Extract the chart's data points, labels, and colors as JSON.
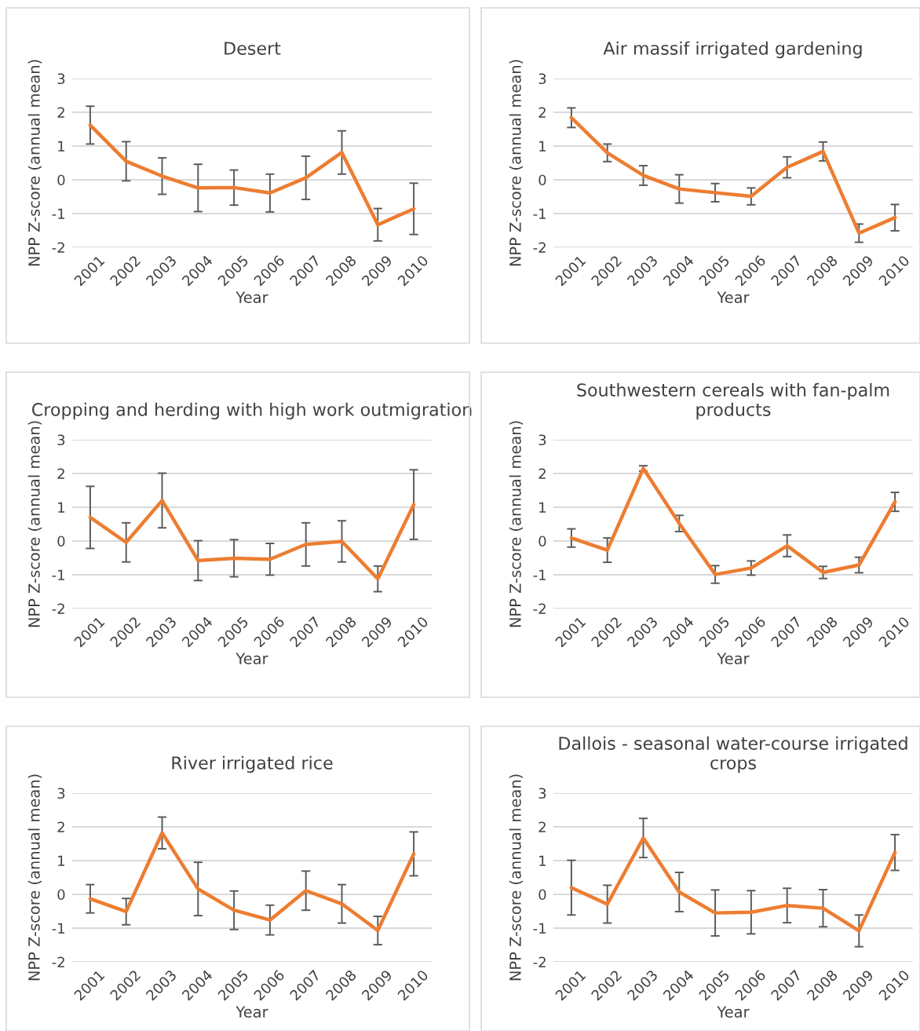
{
  "chart_data": [
    {
      "type": "line",
      "title": "Desert",
      "xlabel": "Year",
      "ylabel": "NPP Z-score (annual mean)",
      "categories": [
        "2001",
        "2002",
        "2003",
        "2004",
        "2005",
        "2006",
        "2007",
        "2008",
        "2009",
        "2010"
      ],
      "ylim": [
        -2,
        3
      ],
      "yticks": [
        -2,
        -1,
        0,
        1,
        2,
        3
      ],
      "grid": "y",
      "line_style": "solid",
      "series": [
        {
          "color": "#ed7d31",
          "values": [
            1.62,
            0.55,
            0.11,
            -0.24,
            -0.23,
            -0.39,
            0.06,
            0.81,
            -1.33,
            -0.86
          ],
          "errors": [
            0.56,
            0.58,
            0.54,
            0.7,
            0.52,
            0.56,
            0.64,
            0.64,
            0.48,
            0.76
          ]
        }
      ]
    },
    {
      "type": "line",
      "title": "Air massif irrigated gardening",
      "xlabel": "Year",
      "ylabel": "NPP Z-score (annual mean)",
      "categories": [
        "2001",
        "2002",
        "2003",
        "2004",
        "2005",
        "2006",
        "2007",
        "2008",
        "2009",
        "2010"
      ],
      "ylim": [
        -2,
        3
      ],
      "yticks": [
        -2,
        -1,
        0,
        1,
        2,
        3
      ],
      "grid": "y",
      "line_style": "solid",
      "series": [
        {
          "color": "#ed7d31",
          "values": [
            1.84,
            0.8,
            0.13,
            -0.27,
            -0.38,
            -0.49,
            0.37,
            0.84,
            -1.58,
            -1.12
          ],
          "errors": [
            0.29,
            0.26,
            0.29,
            0.42,
            0.27,
            0.25,
            0.31,
            0.28,
            0.27,
            0.39
          ]
        }
      ]
    },
    {
      "type": "line",
      "title": "Cropping and herding with high work outmigration",
      "xlabel": "Year",
      "ylabel": "NPP Z-score (annual mean)",
      "categories": [
        "2001",
        "2002",
        "2003",
        "2004",
        "2005",
        "2006",
        "2007",
        "2008",
        "2009",
        "2010"
      ],
      "ylim": [
        -2,
        3
      ],
      "yticks": [
        -2,
        -1,
        0,
        1,
        2,
        3
      ],
      "grid": "y",
      "line_style": "solid",
      "series": [
        {
          "color": "#ed7d31",
          "values": [
            0.7,
            -0.04,
            1.2,
            -0.58,
            -0.51,
            -0.54,
            -0.1,
            -0.01,
            -1.12,
            1.08
          ],
          "errors": [
            0.92,
            0.58,
            0.81,
            0.59,
            0.55,
            0.47,
            0.64,
            0.61,
            0.38,
            1.03
          ]
        }
      ]
    },
    {
      "type": "line",
      "title": "Southwestern cereals with fan-palm products",
      "xlabel": "Year",
      "ylabel": "NPP Z-score (annual mean)",
      "categories": [
        "2001",
        "2002",
        "2003",
        "2004",
        "2005",
        "2006",
        "2007",
        "2008",
        "2009",
        "2010"
      ],
      "ylim": [
        -2,
        3
      ],
      "yticks": [
        -2,
        -1,
        0,
        1,
        2,
        3
      ],
      "grid": "y",
      "line_style": "solid",
      "series": [
        {
          "color": "#ed7d31",
          "values": [
            0.09,
            -0.27,
            2.15,
            0.52,
            -0.99,
            -0.8,
            -0.14,
            -0.93,
            -0.71,
            1.16
          ],
          "errors": [
            0.27,
            0.36,
            0.08,
            0.24,
            0.26,
            0.21,
            0.32,
            0.18,
            0.23,
            0.28
          ]
        }
      ]
    },
    {
      "type": "line",
      "title": "River irrigated rice",
      "xlabel": "Year",
      "ylabel": "NPP Z-score (annual mean)",
      "categories": [
        "2001",
        "2002",
        "2003",
        "2004",
        "2005",
        "2006",
        "2007",
        "2008",
        "2009",
        "2010"
      ],
      "ylim": [
        -2,
        3
      ],
      "yticks": [
        -2,
        -1,
        0,
        1,
        2,
        3
      ],
      "grid": "y",
      "line_style": "solid",
      "series": [
        {
          "color": "#ed7d31",
          "values": [
            -0.13,
            -0.51,
            1.82,
            0.16,
            -0.47,
            -0.76,
            0.11,
            -0.28,
            -1.07,
            1.2
          ],
          "errors": [
            0.42,
            0.39,
            0.47,
            0.79,
            0.57,
            0.44,
            0.58,
            0.57,
            0.42,
            0.65
          ]
        }
      ]
    },
    {
      "type": "line",
      "title": "Dallois - seasonal water-course irrigated crops",
      "xlabel": "Year",
      "ylabel": "NPP Z-score (annual mean)",
      "categories": [
        "2001",
        "2002",
        "2003",
        "2004",
        "2005",
        "2006",
        "2007",
        "2008",
        "2009",
        "2010"
      ],
      "ylim": [
        -2,
        3
      ],
      "yticks": [
        -2,
        -1,
        0,
        1,
        2,
        3
      ],
      "grid": "y",
      "line_style": "solid",
      "series": [
        {
          "color": "#ed7d31",
          "values": [
            0.2,
            -0.29,
            1.67,
            0.07,
            -0.55,
            -0.53,
            -0.33,
            -0.41,
            -1.08,
            1.24
          ],
          "errors": [
            0.81,
            0.56,
            0.58,
            0.58,
            0.68,
            0.64,
            0.51,
            0.55,
            0.47,
            0.53
          ]
        }
      ]
    }
  ]
}
